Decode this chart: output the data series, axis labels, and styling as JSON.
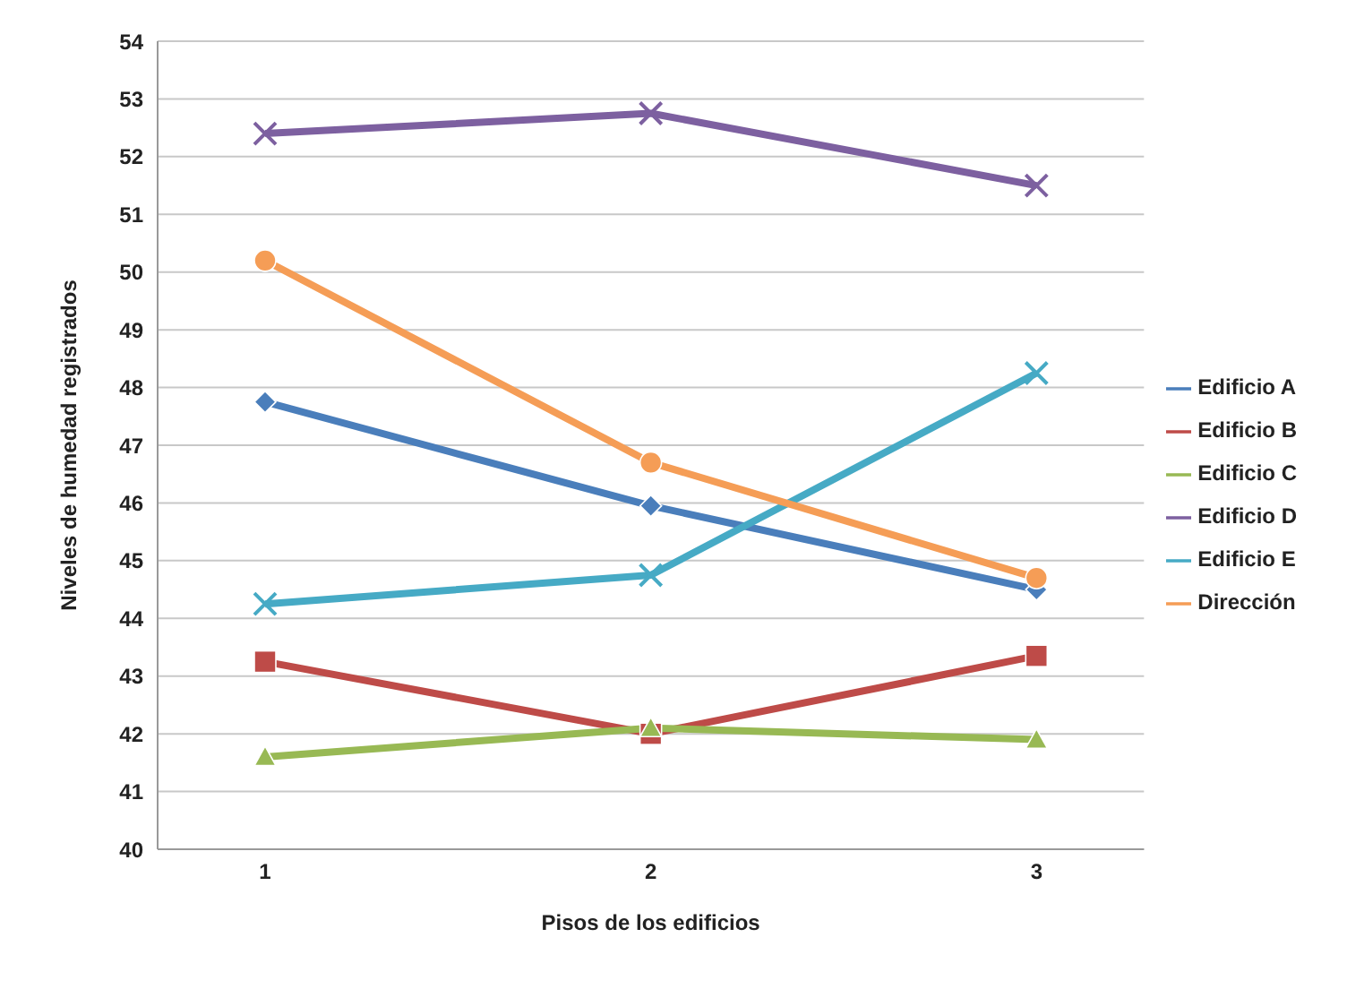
{
  "chart_data": {
    "type": "line",
    "xlabel": "Pisos de los edificios",
    "ylabel": "Niveles de humedad registrados",
    "categories": [
      "1",
      "2",
      "3"
    ],
    "ylim": [
      40,
      54
    ],
    "yticks": [
      40,
      41,
      42,
      43,
      44,
      45,
      46,
      47,
      48,
      49,
      50,
      51,
      52,
      53,
      54
    ],
    "grid": "y",
    "legend": "right",
    "line_style": "solid",
    "series": [
      {
        "name": "Edificio A",
        "color": "#4a7ebb",
        "marker": "diamond",
        "values": [
          47.75,
          45.95,
          44.5
        ]
      },
      {
        "name": "Edificio B",
        "color": "#be4b48",
        "marker": "square",
        "values": [
          43.25,
          42.0,
          43.35
        ]
      },
      {
        "name": "Edificio C",
        "color": "#98b954",
        "marker": "triangle",
        "values": [
          41.6,
          42.1,
          41.9
        ]
      },
      {
        "name": "Edificio D",
        "color": "#7d60a0",
        "marker": "cross",
        "values": [
          52.4,
          52.75,
          51.5
        ]
      },
      {
        "name": "Edificio E",
        "color": "#46aac5",
        "marker": "cross",
        "values": [
          44.25,
          44.75,
          48.25
        ]
      },
      {
        "name": "Dirección",
        "color": "#f59d56",
        "marker": "circle",
        "values": [
          50.2,
          46.7,
          44.7
        ]
      }
    ]
  }
}
